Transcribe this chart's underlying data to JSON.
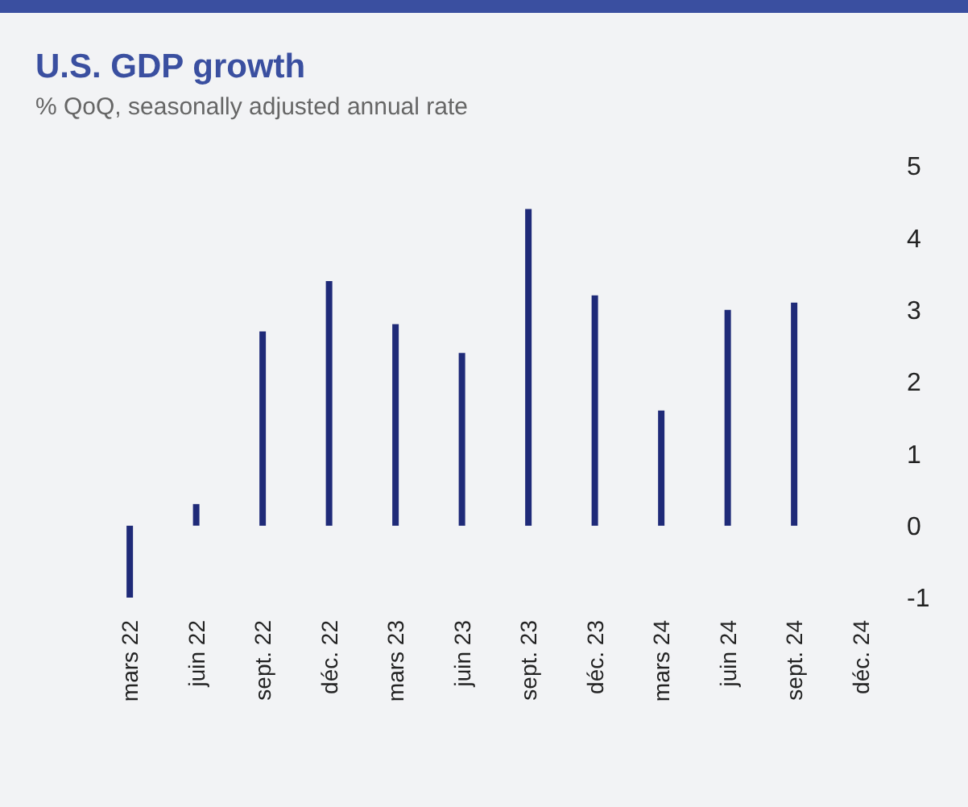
{
  "chart_data": {
    "type": "bar",
    "title": "U.S. GDP growth",
    "subtitle": "% QoQ, seasonally adjusted annual rate",
    "categories": [
      "mars 22",
      "juin 22",
      "sept. 22",
      "déc. 22",
      "mars 23",
      "juin 23",
      "sept. 23",
      "déc. 23",
      "mars 24",
      "juin 24",
      "sept. 24",
      "déc. 24"
    ],
    "values": [
      -1.0,
      0.3,
      2.7,
      3.4,
      2.8,
      2.4,
      4.4,
      3.2,
      1.6,
      3.0,
      3.1,
      null
    ],
    "color": "#1f2a78",
    "ylim": [
      -1,
      5
    ],
    "yticks": [
      -1,
      0,
      1,
      2,
      3,
      4,
      5
    ]
  }
}
